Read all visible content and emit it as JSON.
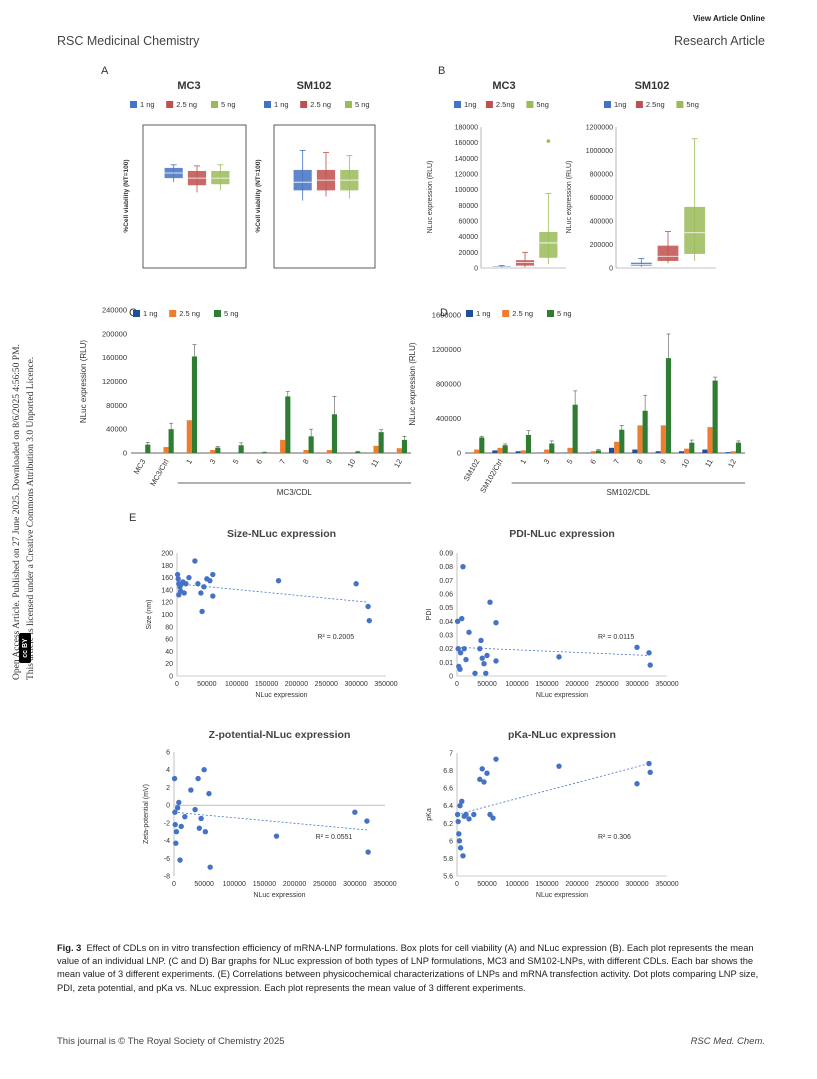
{
  "header": {
    "view_online": "View Article Online",
    "journal": "RSC Medicinal Chemistry",
    "article_type": "Research Article"
  },
  "sidebar": {
    "line1": "Open Access Article. Published on 27 June 2025. Downloaded on 8/6/2025 4:56:50 PM.",
    "line2": "This article is licensed under a Creative Commons Attribution 3.0 Unported Licence.",
    "cc_badge": "cc BY"
  },
  "colors": {
    "c1": "#4472c4",
    "c2": "#c0504d",
    "c3": "#9bbb59",
    "bar1": "#1f4e9b",
    "bar2": "#ed7d31",
    "bar3": "#2e7d32",
    "dot": "#4472c4"
  },
  "panels": {
    "A": {
      "label": "A",
      "titles": [
        "MC3",
        "SM102"
      ],
      "legend": [
        "1 ng",
        "2.5 ng",
        "5 ng"
      ],
      "ylabel": "%Cell viability (NT=100)"
    },
    "B": {
      "label": "B",
      "titles": [
        "MC3",
        "SM102"
      ],
      "legend": [
        "1ng",
        "2.5ng",
        "5ng"
      ],
      "ylabel": "NLuc expression (RLU)"
    },
    "C": {
      "label": "C"
    },
    "D": {
      "label": "D"
    },
    "E": {
      "label": "E"
    }
  },
  "chart_data": [
    {
      "id": "A-MC3",
      "type": "box",
      "title": "MC3",
      "ylabel": "%Cell viability (NT=100)",
      "series": [
        {
          "name": "1 ng",
          "q1": 88,
          "median": 93,
          "q3": 98,
          "min": 84,
          "max": 101
        },
        {
          "name": "2.5 ng",
          "q1": 81,
          "median": 88,
          "q3": 95,
          "min": 74,
          "max": 100
        },
        {
          "name": "5 ng",
          "q1": 82,
          "median": 88,
          "q3": 95,
          "min": 76,
          "max": 101
        }
      ]
    },
    {
      "id": "A-SM102",
      "type": "box",
      "title": "SM102",
      "ylabel": "%Cell viability (NT=100)",
      "series": [
        {
          "name": "1 ng",
          "q1": 76,
          "median": 84,
          "q3": 96,
          "min": 66,
          "max": 115
        },
        {
          "name": "2.5 ng",
          "q1": 76,
          "median": 86,
          "q3": 96,
          "min": 70,
          "max": 113
        },
        {
          "name": "5 ng",
          "q1": 76,
          "median": 86,
          "q3": 96,
          "min": 68,
          "max": 110
        }
      ]
    },
    {
      "id": "B-MC3",
      "type": "box",
      "title": "MC3",
      "ylabel": "NLuc expression (RLU)",
      "ylim": [
        0,
        180000
      ],
      "yticks": [
        "0",
        "20000",
        "40000",
        "60000",
        "80000",
        "100000",
        "120000",
        "140000",
        "160000",
        "180000"
      ],
      "series": [
        {
          "name": "1ng",
          "q1": 500,
          "median": 1000,
          "q3": 2000,
          "min": 0,
          "max": 3000
        },
        {
          "name": "2.5ng",
          "q1": 3000,
          "median": 7000,
          "q3": 10000,
          "min": 1000,
          "max": 20000
        },
        {
          "name": "5ng",
          "q1": 13000,
          "median": 32000,
          "q3": 46000,
          "min": 5000,
          "max": 95000,
          "outlier": 162000
        }
      ]
    },
    {
      "id": "B-SM102",
      "type": "box",
      "title": "SM102",
      "ylabel": "NLuc expression (RLU)",
      "ylim": [
        0,
        1200000
      ],
      "yticks": [
        "0",
        "200000",
        "400000",
        "600000",
        "800000",
        "1000000",
        "1200000"
      ],
      "series": [
        {
          "name": "1ng",
          "q1": 20000,
          "median": 30000,
          "q3": 45000,
          "min": 10000,
          "max": 80000
        },
        {
          "name": "2.5ng",
          "q1": 60000,
          "median": 100000,
          "q3": 190000,
          "min": 40000,
          "max": 310000
        },
        {
          "name": "5ng",
          "q1": 120000,
          "median": 300000,
          "q3": 520000,
          "min": 60000,
          "max": 1100000
        }
      ]
    },
    {
      "id": "C",
      "type": "bar",
      "ylabel": "NLuc expression (RLU)",
      "ylim": [
        0,
        240000
      ],
      "yticks": [
        "0",
        "40000",
        "80000",
        "120000",
        "160000",
        "200000",
        "240000"
      ],
      "legend": [
        "1 ng",
        "2.5 ng",
        "5 ng"
      ],
      "categories": [
        "MC3",
        "MC3/Ctrl",
        "1",
        "3",
        "5",
        "6",
        "7",
        "8",
        "9",
        "10",
        "11",
        "12"
      ],
      "group_label": "MC3/CDL",
      "series": [
        {
          "name": "1 ng",
          "values": [
            0,
            0,
            0,
            0,
            0,
            0,
            0,
            0,
            0,
            0,
            0,
            0
          ]
        },
        {
          "name": "2.5 ng",
          "values": [
            0,
            10000,
            55000,
            5000,
            0,
            0,
            22000,
            5000,
            5000,
            0,
            12000,
            8000
          ]
        },
        {
          "name": "5 ng",
          "values": [
            14000,
            40000,
            162000,
            9000,
            13000,
            1000,
            95000,
            28000,
            65000,
            2000,
            35000,
            22000
          ]
        }
      ],
      "errors": [
        4000,
        10000,
        20000,
        2000,
        4000,
        500,
        8000,
        12000,
        30000,
        1000,
        4000,
        6000
      ]
    },
    {
      "id": "D",
      "type": "bar",
      "ylabel": "NLuc expression (RLU)",
      "ylim": [
        0,
        1600000
      ],
      "yticks": [
        "0",
        "400000",
        "800000",
        "1200000",
        "1600000"
      ],
      "legend": [
        "1 ng",
        "2.5 ng",
        "5 ng"
      ],
      "categories": [
        "SM102",
        "SM102/Ctrl",
        "1",
        "3",
        "5",
        "6",
        "7",
        "8",
        "9",
        "10",
        "11",
        "12"
      ],
      "group_label": "SM102/CDL",
      "series": [
        {
          "name": "1 ng",
          "values": [
            0,
            30000,
            20000,
            5000,
            5000,
            5000,
            60000,
            40000,
            20000,
            20000,
            40000,
            10000
          ]
        },
        {
          "name": "2.5 ng",
          "values": [
            40000,
            60000,
            30000,
            40000,
            60000,
            20000,
            130000,
            320000,
            320000,
            50000,
            300000,
            20000
          ]
        },
        {
          "name": "5 ng",
          "values": [
            180000,
            90000,
            210000,
            110000,
            560000,
            30000,
            270000,
            490000,
            1100000,
            120000,
            840000,
            120000
          ]
        }
      ],
      "errors": [
        15000,
        15000,
        50000,
        30000,
        160000,
        10000,
        50000,
        180000,
        280000,
        30000,
        40000,
        20000
      ]
    },
    {
      "id": "E-size",
      "type": "scatter",
      "title": "Size-NLuc expression",
      "xlabel": "NLuc expression",
      "ylabel": "Size (nm)",
      "xlim": [
        0,
        350000
      ],
      "ylim": [
        0,
        200
      ],
      "xticks": [
        "0",
        "50000",
        "100000",
        "150000",
        "200000",
        "250000",
        "300000",
        "350000"
      ],
      "yticks": [
        "0",
        "20",
        "40",
        "60",
        "80",
        "100",
        "120",
        "140",
        "160",
        "180",
        "200"
      ],
      "r2": "R² = 0.2005",
      "trend": [
        [
          0,
          150
        ],
        [
          320000,
          120
        ]
      ],
      "points": [
        [
          1000,
          165
        ],
        [
          2000,
          158
        ],
        [
          3000,
          150
        ],
        [
          5000,
          145
        ],
        [
          6000,
          138
        ],
        [
          8000,
          150
        ],
        [
          10000,
          153
        ],
        [
          15000,
          150
        ],
        [
          20000,
          160
        ],
        [
          30000,
          187
        ],
        [
          35000,
          150
        ],
        [
          40000,
          135
        ],
        [
          42000,
          105
        ],
        [
          45000,
          145
        ],
        [
          50000,
          158
        ],
        [
          55000,
          155
        ],
        [
          60000,
          130
        ],
        [
          60000,
          165
        ],
        [
          170000,
          155
        ],
        [
          300000,
          150
        ],
        [
          320000,
          113
        ],
        [
          322000,
          90
        ],
        [
          3000,
          132
        ],
        [
          12000,
          135
        ]
      ]
    },
    {
      "id": "E-pdi",
      "type": "scatter",
      "title": "PDI-NLuc expression",
      "xlabel": "NLuc expression",
      "ylabel": "PDI",
      "xlim": [
        0,
        350000
      ],
      "ylim": [
        0,
        0.09
      ],
      "xticks": [
        "0",
        "50000",
        "100000",
        "150000",
        "200000",
        "250000",
        "300000",
        "350000"
      ],
      "yticks": [
        "0",
        "0.01",
        "0.02",
        "0.03",
        "0.04",
        "0.05",
        "0.06",
        "0.07",
        "0.08",
        "0.09"
      ],
      "r2": "R² = 0.0115",
      "trend": [
        [
          0,
          0.021
        ],
        [
          320000,
          0.015
        ]
      ],
      "points": [
        [
          1000,
          0.04
        ],
        [
          2000,
          0.02
        ],
        [
          3000,
          0.007
        ],
        [
          5000,
          0.005
        ],
        [
          6000,
          0.017
        ],
        [
          8000,
          0.042
        ],
        [
          10000,
          0.08
        ],
        [
          12000,
          0.02
        ],
        [
          15000,
          0.012
        ],
        [
          20000,
          0.032
        ],
        [
          30000,
          0.002
        ],
        [
          38000,
          0.02
        ],
        [
          40000,
          0.026
        ],
        [
          42000,
          0.013
        ],
        [
          45000,
          0.009
        ],
        [
          48000,
          0.002
        ],
        [
          50000,
          0.015
        ],
        [
          55000,
          0.054
        ],
        [
          65000,
          0.039
        ],
        [
          65000,
          0.011
        ],
        [
          170000,
          0.014
        ],
        [
          300000,
          0.021
        ],
        [
          320000,
          0.017
        ],
        [
          322000,
          0.008
        ]
      ]
    },
    {
      "id": "E-zeta",
      "type": "scatter",
      "title": "Z-potential-NLuc expression",
      "xlabel": "NLuc expression",
      "ylabel": "Zeta-potential (mV)",
      "xlim": [
        0,
        350000
      ],
      "ylim": [
        -8,
        6
      ],
      "xticks": [
        "0",
        "50000",
        "100000",
        "150000",
        "200000",
        "250000",
        "300000",
        "350000"
      ],
      "yticks": [
        "-8",
        "-6",
        "-4",
        "-2",
        "0",
        "2",
        "4",
        "6"
      ],
      "r2": "R² = 0.0551",
      "trend": [
        [
          0,
          -0.8
        ],
        [
          320000,
          -2.8
        ]
      ],
      "points": [
        [
          1000,
          3.0
        ],
        [
          1500,
          -0.8
        ],
        [
          2000,
          -2.2
        ],
        [
          3000,
          -4.3
        ],
        [
          4000,
          -3.0
        ],
        [
          6000,
          -0.3
        ],
        [
          8000,
          0.3
        ],
        [
          10000,
          -6.2
        ],
        [
          12000,
          -2.4
        ],
        [
          18000,
          -1.3
        ],
        [
          28000,
          1.7
        ],
        [
          35000,
          -0.5
        ],
        [
          40000,
          3.0
        ],
        [
          42000,
          -2.6
        ],
        [
          45000,
          -1.5
        ],
        [
          50000,
          4.0
        ],
        [
          52000,
          -3.0
        ],
        [
          58000,
          1.3
        ],
        [
          60000,
          -7.0
        ],
        [
          170000,
          -3.5
        ],
        [
          300000,
          -0.8
        ],
        [
          320000,
          -1.8
        ],
        [
          322000,
          -5.3
        ]
      ]
    },
    {
      "id": "E-pka",
      "type": "scatter",
      "title": "pKa-NLuc expression",
      "xlabel": "NLuc expression",
      "ylabel": "pKa",
      "xlim": [
        0,
        350000
      ],
      "ylim": [
        5.6,
        7.0
      ],
      "xticks": [
        "0",
        "50000",
        "100000",
        "150000",
        "200000",
        "250000",
        "300000",
        "350000"
      ],
      "yticks": [
        "5.6",
        "5.8",
        "6",
        "6.2",
        "6.4",
        "6.6",
        "6.8",
        "7"
      ],
      "r2": "R² = 0.306",
      "trend": [
        [
          0,
          6.3
        ],
        [
          320000,
          6.88
        ]
      ],
      "points": [
        [
          1000,
          6.3
        ],
        [
          2000,
          6.22
        ],
        [
          3000,
          6.08
        ],
        [
          4000,
          6.0
        ],
        [
          5000,
          6.4
        ],
        [
          6000,
          5.92
        ],
        [
          8000,
          6.45
        ],
        [
          10000,
          5.83
        ],
        [
          12000,
          6.28
        ],
        [
          15000,
          6.3
        ],
        [
          20000,
          6.25
        ],
        [
          28000,
          6.3
        ],
        [
          38000,
          6.7
        ],
        [
          42000,
          6.82
        ],
        [
          45000,
          6.67
        ],
        [
          50000,
          6.77
        ],
        [
          55000,
          6.3
        ],
        [
          60000,
          6.26
        ],
        [
          65000,
          6.93
        ],
        [
          170000,
          6.85
        ],
        [
          300000,
          6.65
        ],
        [
          320000,
          6.88
        ],
        [
          322000,
          6.78
        ]
      ]
    }
  ],
  "caption": {
    "fig": "Fig. 3",
    "text": "Effect of CDLs on in vitro transfection efficiency of mRNA-LNP formulations. Box plots for cell viability (A) and NLuc expression (B). Each plot represents the mean value of an individual LNP. (C and D) Bar graphs for NLuc expression of both types of LNP formulations, MC3 and SM102-LNPs, with different CDLs. Each bar shows the mean value of 3 different experiments. (E) Correlations between physicochemical characterizations of LNPs and mRNA transfection activity. Dot plots comparing LNP size, PDI, zeta potential, and pKa vs. NLuc expression. Each plot represents the mean value of 3 different experiments."
  },
  "footer": {
    "left": "This journal is © The Royal Society of Chemistry 2025",
    "right": "RSC Med. Chem."
  }
}
